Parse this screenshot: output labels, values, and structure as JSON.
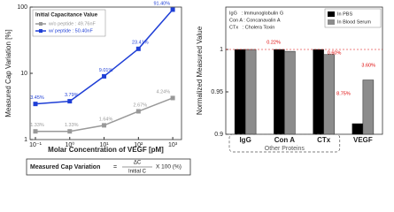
{
  "chart_data": [
    {
      "type": "line",
      "log_x": true,
      "log_y": true,
      "x_label": "Molar Concentration of VEGF [pM]",
      "y_label": "Measured Cap Variation [%]",
      "x": [
        0.1,
        1,
        10,
        100,
        1000
      ],
      "xlim": [
        0.07,
        1800
      ],
      "xticks": [
        {
          "value": 0.1,
          "label": "10⁻¹"
        },
        {
          "value": 1,
          "label": "10⁰"
        },
        {
          "value": 10,
          "label": "10¹"
        },
        {
          "value": 100,
          "label": "10²"
        },
        {
          "value": 1000,
          "label": "10³"
        }
      ],
      "ylim": [
        1,
        100
      ],
      "yticks": [
        1,
        10,
        100
      ],
      "legend_title": "Initial Capacitance Value",
      "series": [
        {
          "name": "w/o peptide : 49.76nF",
          "color": "#999999",
          "values": [
            1.33,
            1.33,
            1.64,
            2.67,
            4.24
          ],
          "value_labels": [
            "1.33%",
            "1.33%",
            "1.64%",
            "2.67%",
            "4.24%"
          ]
        },
        {
          "name": "w/  peptide : 50.40nF",
          "color": "#1f3fd6",
          "values": [
            3.45,
            3.79,
            9.01,
            23.41,
            91.4
          ],
          "value_labels": [
            "3.45%",
            "3.79%",
            "9.01%",
            "23.41%",
            "91.40%"
          ]
        }
      ],
      "formula": {
        "left": "Measured Cap Variation",
        "equals": "=",
        "numerator": "ΔC",
        "denominator": "Initial C",
        "right": "X 100 (%)"
      }
    },
    {
      "type": "bar",
      "y_label": "Normalized Measured Value",
      "categories": [
        "IgG",
        "Con A",
        "CTx",
        "VEGF"
      ],
      "ylim": [
        0.9,
        1.05
      ],
      "yticks": [
        0.9,
        0.95,
        1
      ],
      "series": [
        {
          "name": "In PBS",
          "color": "#000000",
          "values": [
            1,
            1,
            1,
            0.9125
          ]
        },
        {
          "name": "In Blood Serum",
          "color": "#8c8c8c",
          "values": [
            1,
            0.9978,
            0.994,
            0.964
          ]
        }
      ],
      "abbreviations": [
        "IgG   : Immunoglobulin G",
        "Con A : Concanavalin A",
        "CTx   : Cholera Toxin"
      ],
      "annotations": [
        "0.22%",
        "0.60%",
        "3.60%",
        "8.75%"
      ],
      "group_label": "Other Proteins"
    }
  ]
}
